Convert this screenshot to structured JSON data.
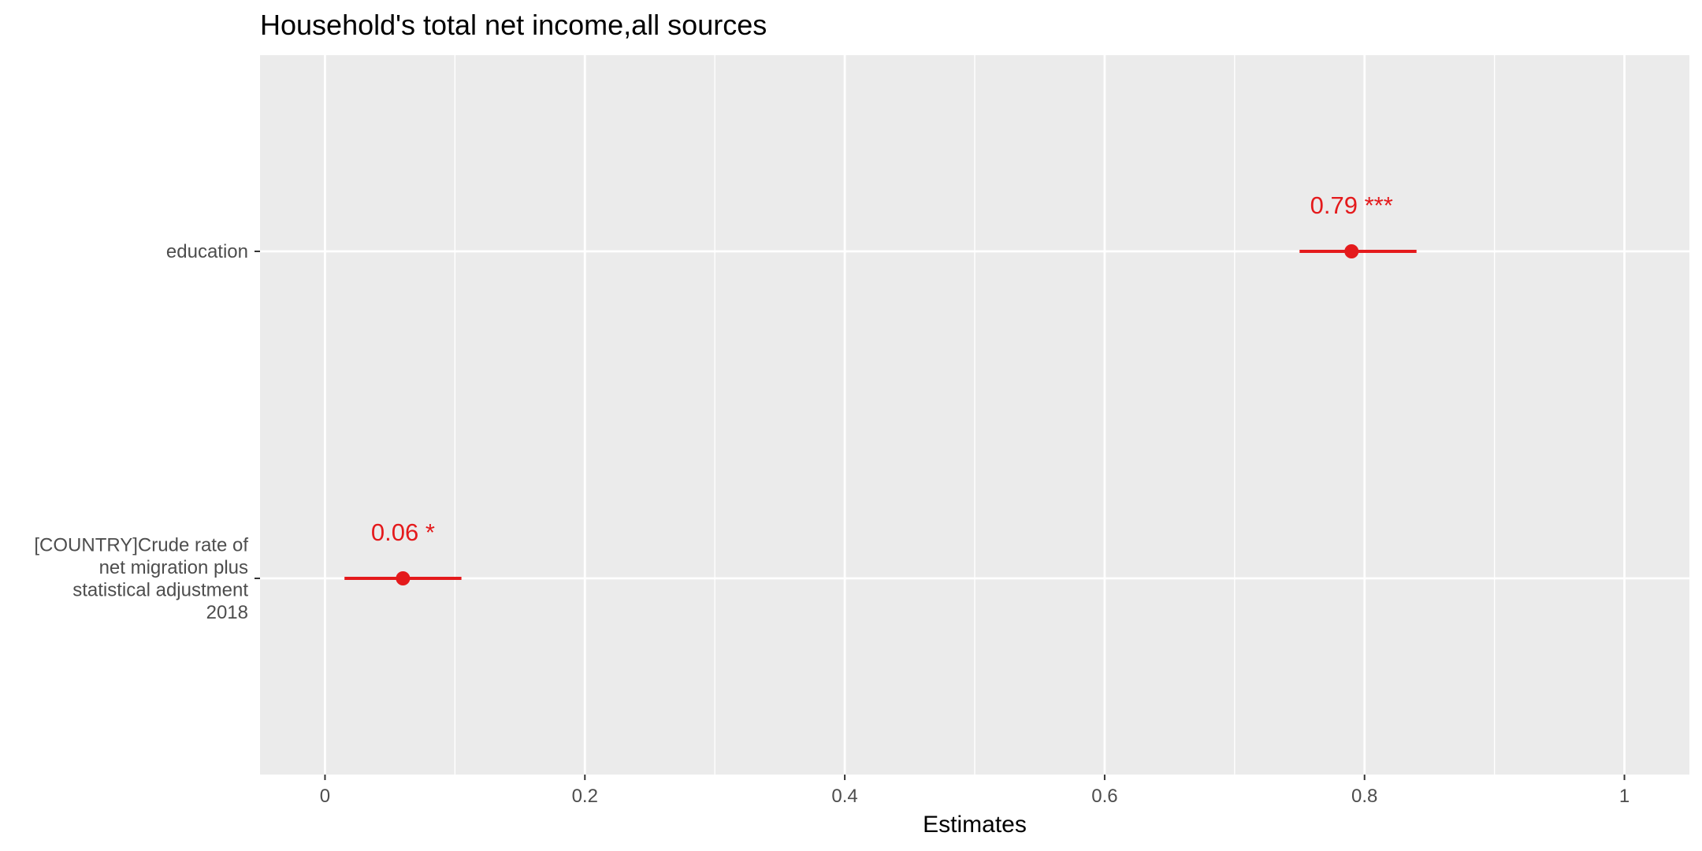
{
  "chart_data": {
    "type": "forest",
    "title": "Household's total net income,all sources",
    "xlabel": "Estimates",
    "ylabel": "",
    "xlim": [
      -0.05,
      1.05
    ],
    "x_ticks": [
      0,
      0.2,
      0.4,
      0.6,
      0.8,
      1
    ],
    "x_tick_labels": [
      "0",
      "0.2",
      "0.4",
      "0.6",
      "0.8",
      "1"
    ],
    "grid": true,
    "legend": "none",
    "color": "#e41a1c",
    "panel_color": "#ebebeb",
    "terms": [
      {
        "label_lines": [
          "education"
        ],
        "estimate": 0.79,
        "ci_low": 0.75,
        "ci_high": 0.84,
        "label": "0.79 ***"
      },
      {
        "label_lines": [
          "[COUNTRY]Crude rate of",
          "net migration plus",
          "statistical adjustment",
          "2018"
        ],
        "estimate": 0.06,
        "ci_low": 0.015,
        "ci_high": 0.105,
        "label": "0.06 *"
      }
    ]
  }
}
